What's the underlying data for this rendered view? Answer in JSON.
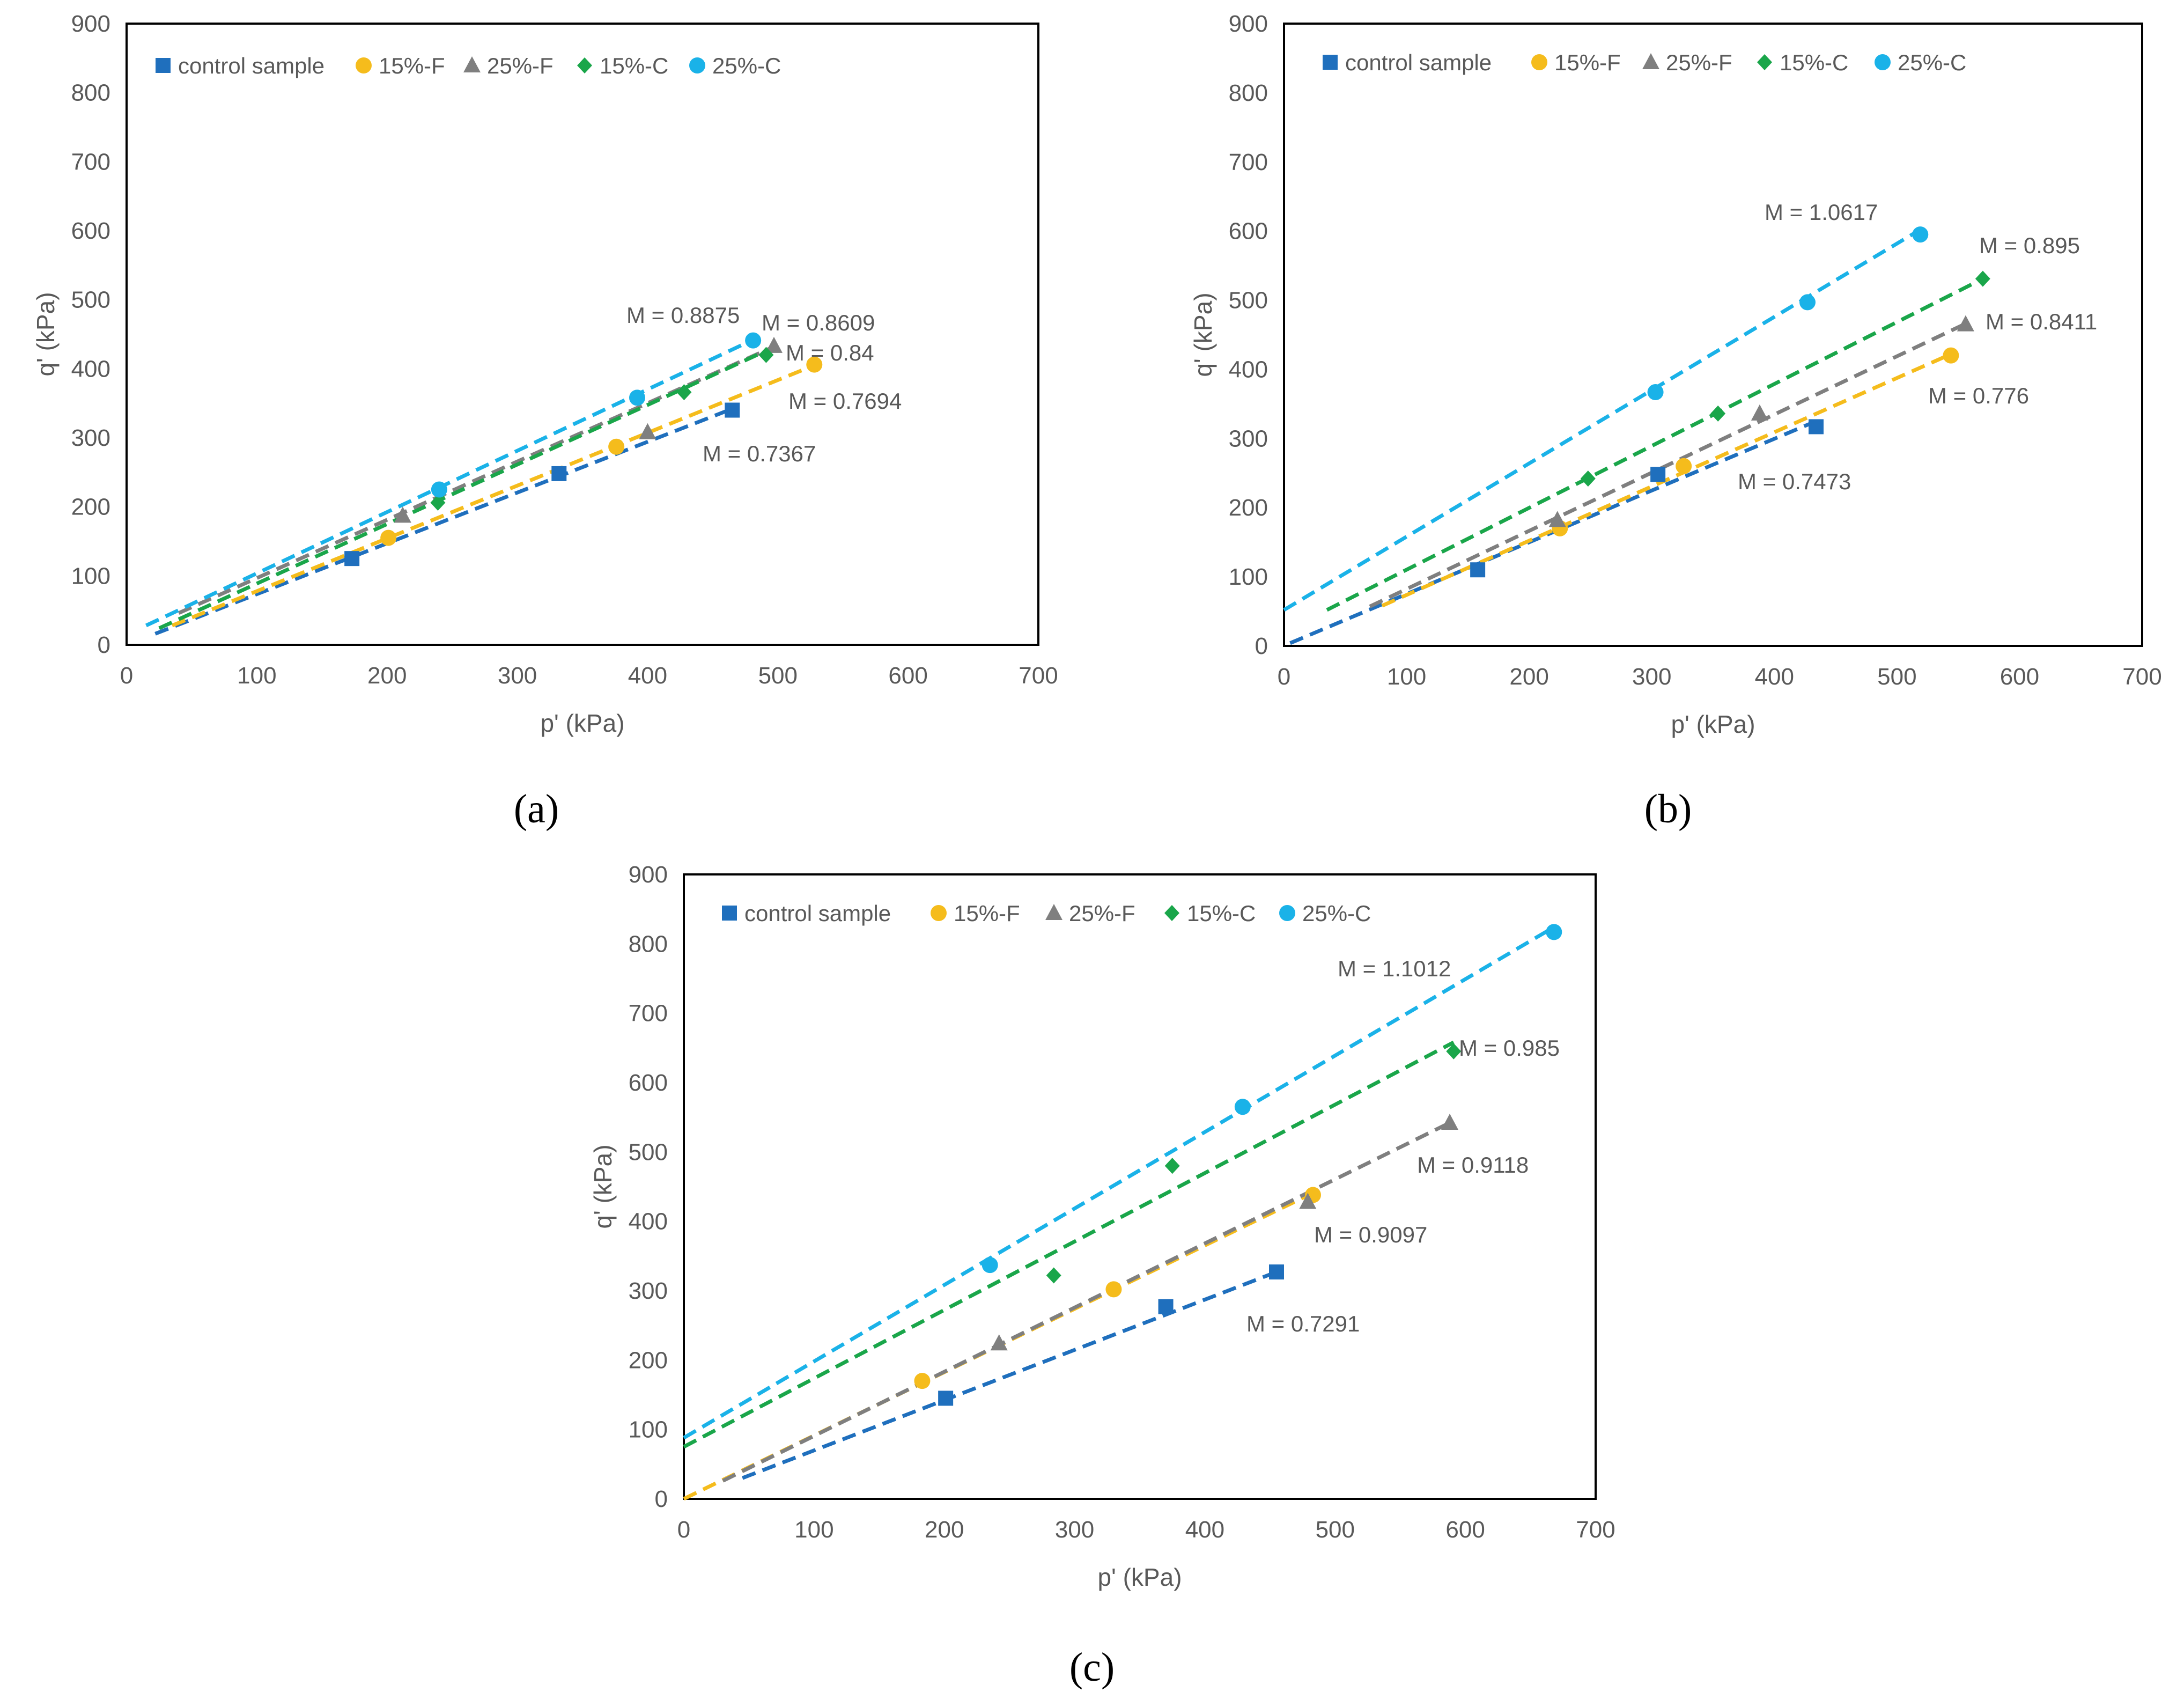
{
  "figure": {
    "captions": [
      "(a)",
      "(b)",
      "(c)"
    ],
    "legend_labels": [
      "control sample",
      "15%-F",
      "25%-F",
      "15%-C",
      "25%-C"
    ],
    "colors": {
      "control sample": "#1f6fbd",
      "15%-F": "#f5bc1c",
      "25%-F": "#7f7f7f",
      "15%-C": "#1aa64a",
      "25%-C": "#1ab2e8"
    },
    "markers": {
      "control sample": "square",
      "15%-F": "circle",
      "25%-F": "triangle",
      "15%-C": "diamond",
      "25%-C": "circle"
    }
  },
  "chart_data": [
    {
      "type": "scatter",
      "panel": "(a)",
      "xlabel": "p' (kPa)",
      "ylabel": "q' (kPa)",
      "xlim": [
        0,
        700
      ],
      "ylim": [
        0,
        900
      ],
      "xticks": [
        0,
        100,
        200,
        300,
        400,
        500,
        600,
        700
      ],
      "yticks": [
        0,
        100,
        200,
        300,
        400,
        500,
        600,
        700,
        800,
        900
      ],
      "grid": false,
      "legend_position": "top-left",
      "series": [
        {
          "name": "control sample",
          "x": [
            173,
            332,
            465
          ],
          "y": [
            125,
            248,
            340
          ],
          "trend": {
            "x": [
              22,
              465
            ],
            "y": [
              16,
              342
            ]
          },
          "m_label": "M = 0.7367"
        },
        {
          "name": "15%-F",
          "x": [
            201,
            376,
            528
          ],
          "y": [
            155,
            287,
            406
          ],
          "trend": {
            "x": [
              35,
              528
            ],
            "y": [
              28,
              405
            ]
          },
          "m_label": "M = 0.7694"
        },
        {
          "name": "25%-F",
          "x": [
            212,
            400,
            497
          ],
          "y": [
            187,
            308,
            433
          ],
          "trend": {
            "x": [
              40,
              497
            ],
            "y": [
              46,
              432
            ]
          },
          "m_label": "M = 0.84"
        },
        {
          "name": "15%-C",
          "x": [
            239,
            428,
            491
          ],
          "y": [
            206,
            366,
            420
          ],
          "trend": {
            "x": [
              25,
              491
            ],
            "y": [
              24,
              426
            ]
          },
          "m_label": "M = 0.8609"
        },
        {
          "name": "25%-C",
          "x": [
            240,
            392,
            481
          ],
          "y": [
            225,
            358,
            441
          ],
          "trend": {
            "x": [
              15,
              481
            ],
            "y": [
              28,
              442
            ]
          },
          "m_label": "M = 0.8875"
        }
      ]
    },
    {
      "type": "scatter",
      "panel": "(b)",
      "xlabel": "p' (kPa)",
      "ylabel": "q' (kPa)",
      "xlim": [
        0,
        700
      ],
      "ylim": [
        0,
        900
      ],
      "xticks": [
        0,
        100,
        200,
        300,
        400,
        500,
        600,
        700
      ],
      "yticks": [
        0,
        100,
        200,
        300,
        400,
        500,
        600,
        700,
        800,
        900
      ],
      "grid": false,
      "legend_position": "top-left",
      "series": [
        {
          "name": "control sample",
          "x": [
            158,
            305,
            434
          ],
          "y": [
            110,
            248,
            317
          ],
          "trend": {
            "x": [
              5,
              434
            ],
            "y": [
              4,
              325
            ]
          },
          "m_label": "M = 0.7473"
        },
        {
          "name": "15%-F",
          "x": [
            225,
            326,
            544
          ],
          "y": [
            170,
            260,
            420
          ],
          "trend": {
            "x": [
              80,
              544
            ],
            "y": [
              58,
              422
            ]
          },
          "m_label": "M = 0.776"
        },
        {
          "name": "25%-F",
          "x": [
            223,
            388,
            556
          ],
          "y": [
            182,
            336,
            465
          ],
          "trend": {
            "x": [
              70,
              556
            ],
            "y": [
              57,
              466
            ]
          },
          "m_label": "M = 0.8411"
        },
        {
          "name": "15%-C",
          "x": [
            248,
            354,
            570
          ],
          "y": [
            242,
            336,
            531
          ],
          "trend": {
            "x": [
              35,
              570
            ],
            "y": [
              52,
              531
            ]
          },
          "m_label": "M = 0.895"
        },
        {
          "name": "25%-C",
          "x": [
            303,
            427,
            519
          ],
          "y": [
            367,
            497,
            595
          ],
          "trend": {
            "x": [
              0,
              519
            ],
            "y": [
              52,
              602
            ]
          },
          "m_label": "M = 1.0617"
        }
      ]
    },
    {
      "type": "scatter",
      "panel": "(c)",
      "xlabel": "p' (kPa)",
      "ylabel": "q' (kPa)",
      "xlim": [
        0,
        700
      ],
      "ylim": [
        0,
        900
      ],
      "xticks": [
        0,
        100,
        200,
        300,
        400,
        500,
        600,
        700
      ],
      "yticks": [
        0,
        100,
        200,
        300,
        400,
        500,
        600,
        700,
        800,
        900
      ],
      "grid": false,
      "legend_position": "top-left",
      "series": [
        {
          "name": "control sample",
          "x": [
            201,
            370,
            455
          ],
          "y": [
            145,
            277,
            327
          ],
          "trend": {
            "x": [
              45,
              455
            ],
            "y": [
              30,
              327
            ]
          },
          "m_label": "M = 0.7291"
        },
        {
          "name": "15%-F",
          "x": [
            183,
            330,
            483
          ],
          "y": [
            170,
            302,
            438
          ],
          "trend": {
            "x": [
              0,
              483
            ],
            "y": [
              0,
              441
            ]
          },
          "m_label": "M = 0.9097"
        },
        {
          "name": "25%-F",
          "x": [
            242,
            479,
            588
          ],
          "y": [
            224,
            428,
            542
          ],
          "trend": {
            "x": [
              30,
              588
            ],
            "y": [
              26,
              542
            ]
          },
          "m_label": "M = 0.9118"
        },
        {
          "name": "15%-C",
          "x": [
            284,
            375,
            591
          ],
          "y": [
            322,
            480,
            645
          ],
          "trend": {
            "x": [
              0,
              591
            ],
            "y": [
              75,
              658
            ]
          },
          "m_label": "M = 0.985"
        },
        {
          "name": "25%-C",
          "x": [
            235,
            429,
            668
          ],
          "y": [
            337,
            565,
            817
          ],
          "trend": {
            "x": [
              0,
              668
            ],
            "y": [
              88,
              824
            ]
          },
          "m_label": "M = 1.1012"
        }
      ]
    }
  ]
}
